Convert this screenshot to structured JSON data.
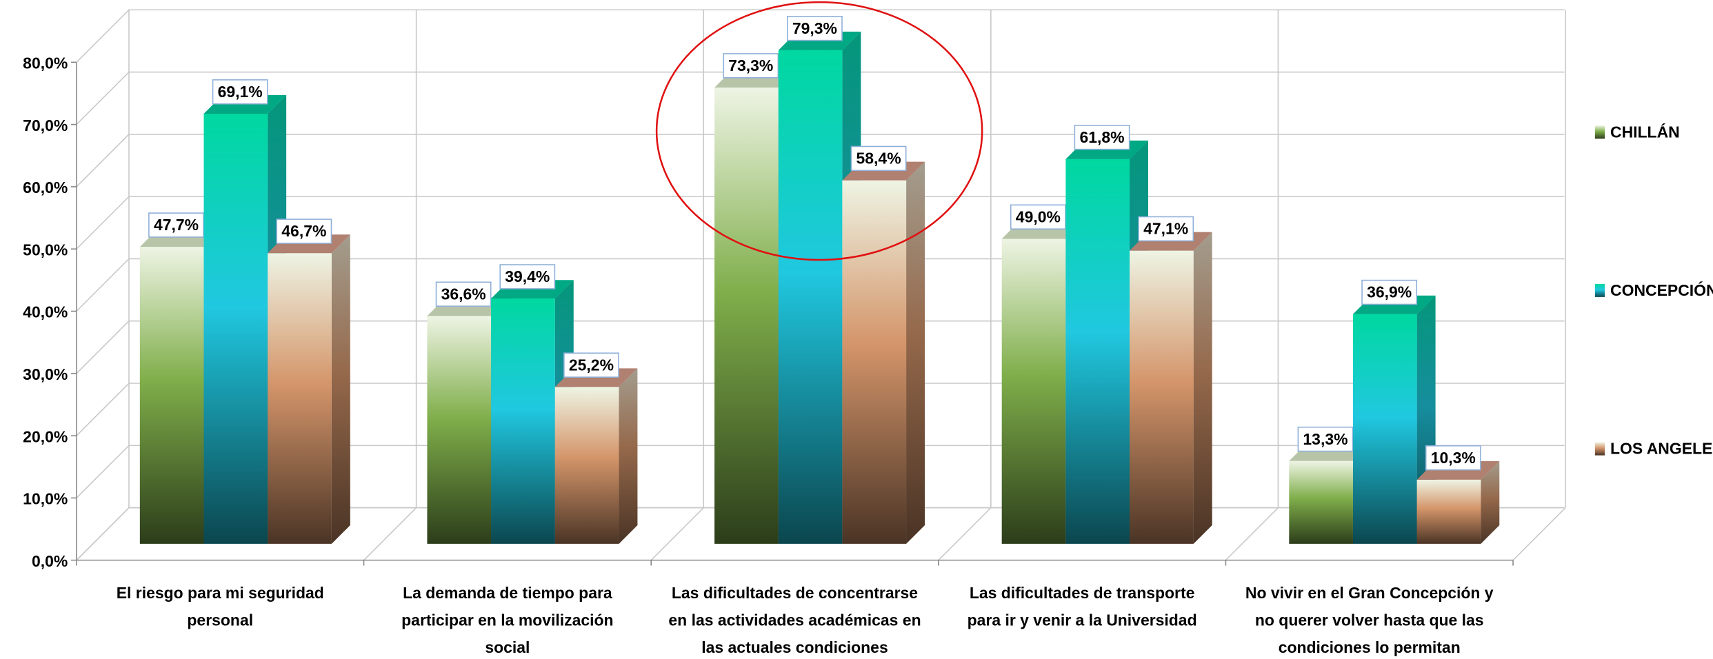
{
  "chart_data": {
    "type": "bar3d",
    "categories": [
      [
        "El riesgo para mi seguridad",
        "personal"
      ],
      [
        "La demanda de tiempo para",
        "participar en la movilización",
        "social"
      ],
      [
        "Las dificultades de concentrarse",
        "en las actividades académicas en",
        "las actuales condiciones"
      ],
      [
        "Las dificultades de transporte",
        "para ir y venir a la Universidad"
      ],
      [
        "No vivir en el Gran Concepción y",
        "no querer volver hasta que las",
        "condiciones lo permitan"
      ]
    ],
    "series": [
      {
        "name": "CHILLÁN",
        "color": "#7fae4a",
        "values": [
          47.7,
          36.6,
          73.3,
          49.0,
          13.3
        ],
        "value_labels": [
          "47,7%",
          "36,6%",
          "73,3%",
          "49,0%",
          "13,3%"
        ]
      },
      {
        "name": "CONCEPCIÓN",
        "color": "#20c8e0",
        "values": [
          69.1,
          39.4,
          79.3,
          61.8,
          36.9
        ],
        "value_labels": [
          "69,1%",
          "39,4%",
          "79,3%",
          "61,8%",
          "36,9%"
        ]
      },
      {
        "name": "LOS ANGELES",
        "color": "#d4956a",
        "values": [
          46.7,
          25.2,
          58.4,
          47.1,
          10.3
        ],
        "value_labels": [
          "46,7%",
          "25,2%",
          "58,4%",
          "47,1%",
          "10,3%"
        ]
      }
    ],
    "ylim": [
      0,
      80
    ],
    "yticks": [
      {
        "value": 0,
        "label": "0,0%"
      },
      {
        "value": 10,
        "label": "10,0%"
      },
      {
        "value": 20,
        "label": "20,0%"
      },
      {
        "value": 30,
        "label": "30,0%"
      },
      {
        "value": 40,
        "label": "40,0%"
      },
      {
        "value": 50,
        "label": "50,0%"
      },
      {
        "value": 60,
        "label": "60,0%"
      },
      {
        "value": 70,
        "label": "70,0%"
      },
      {
        "value": 80,
        "label": "80,0%"
      }
    ],
    "grid": true,
    "legend": "right"
  }
}
